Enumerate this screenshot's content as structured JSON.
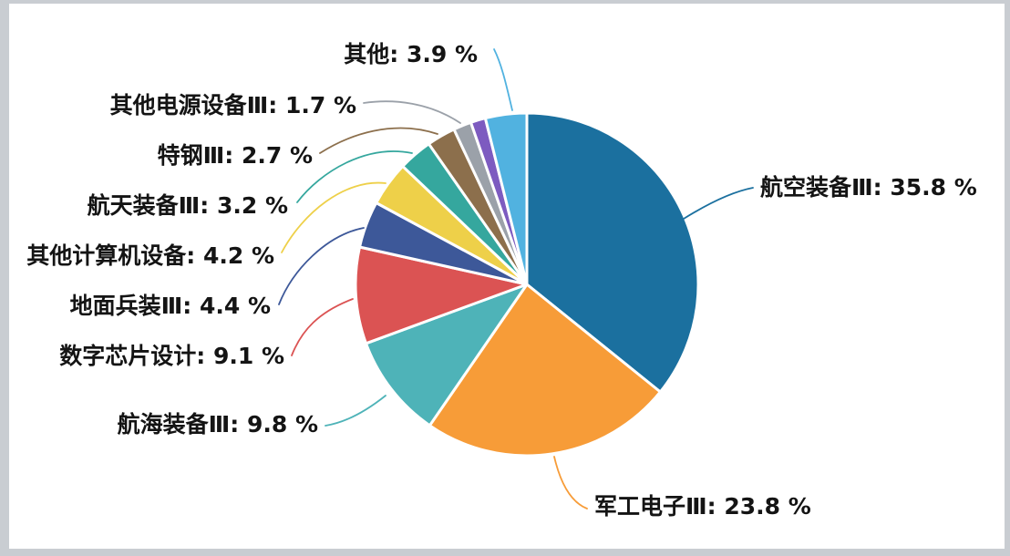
{
  "chart_data": {
    "type": "pie",
    "title": "",
    "legend": "none",
    "start_angle_deg": 0,
    "direction": "clockwise",
    "label_format": "{label}: {value} %",
    "slices": [
      {
        "label": "航空装备Ⅲ",
        "value": 35.8,
        "color": "#1b709f",
        "labeled": true
      },
      {
        "label": "军工电子Ⅲ",
        "value": 23.8,
        "color": "#f79c38",
        "labeled": true
      },
      {
        "label": "航海装备Ⅲ",
        "value": 9.8,
        "color": "#4eb3b8",
        "labeled": true
      },
      {
        "label": "数字芯片设计",
        "value": 9.1,
        "color": "#db5353",
        "labeled": true
      },
      {
        "label": "地面兵装Ⅲ",
        "value": 4.4,
        "color": "#3d5899",
        "labeled": true
      },
      {
        "label": "其他计算机设备",
        "value": 4.2,
        "color": "#eed049",
        "labeled": true
      },
      {
        "label": "航天装备Ⅲ",
        "value": 3.2,
        "color": "#35a79e",
        "labeled": true
      },
      {
        "label": "特钢Ⅲ",
        "value": 2.7,
        "color": "#8c6f4c",
        "labeled": true
      },
      {
        "label": "其他电源设备Ⅲ",
        "value": 1.7,
        "color": "#9ba1a9",
        "labeled": true
      },
      {
        "label": "",
        "value": 1.4,
        "color": "#7d5bc0",
        "labeled": false
      },
      {
        "label": "其他",
        "value": 3.9,
        "color": "#51b2e0",
        "labeled": true
      }
    ]
  }
}
